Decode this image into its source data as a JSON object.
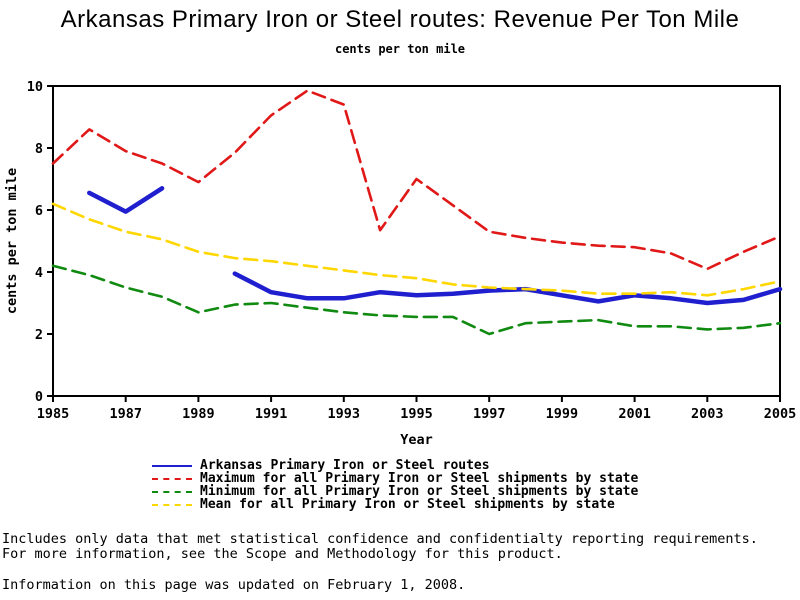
{
  "page": {
    "title": "Arkansas Primary Iron or Steel routes: Revenue Per Ton Mile",
    "subtitle": "cents per ton mile"
  },
  "chart_data": {
    "type": "line",
    "title": "Arkansas Primary Iron or Steel routes: Revenue Per Ton Mile",
    "subtitle": "cents per ton mile",
    "xlabel": "Year",
    "ylabel": "cents per ton mile",
    "xlim": [
      1985,
      2005
    ],
    "ylim": [
      0,
      10
    ],
    "xticks": [
      1985,
      1987,
      1989,
      1991,
      1993,
      1995,
      1997,
      1999,
      2001,
      2003,
      2005
    ],
    "yticks": [
      0,
      2,
      4,
      6,
      8,
      10
    ],
    "grid": false,
    "legend_position": "bottom",
    "x": [
      1985,
      1986,
      1987,
      1988,
      1989,
      1990,
      1991,
      1992,
      1993,
      1994,
      1995,
      1996,
      1997,
      1998,
      1999,
      2000,
      2001,
      2002,
      2003,
      2004,
      2005
    ],
    "series": [
      {
        "name": "Arkansas Primary Iron or Steel routes",
        "color": "#1f1fcf",
        "style": "solid",
        "stroke_width": 4.5,
        "values": [
          null,
          6.55,
          5.95,
          6.7,
          null,
          3.95,
          3.35,
          3.15,
          3.15,
          3.35,
          3.25,
          3.3,
          3.4,
          3.45,
          3.25,
          3.05,
          3.25,
          3.15,
          3.0,
          3.1,
          3.45
        ]
      },
      {
        "name": "Maximum for all Primary Iron or Steel shipments by state",
        "color": "#e01818",
        "style": "dashed",
        "stroke_width": 2.6,
        "values": [
          7.5,
          8.6,
          7.9,
          7.5,
          6.9,
          7.85,
          9.05,
          9.85,
          9.4,
          5.35,
          7.0,
          6.15,
          5.3,
          5.1,
          4.95,
          4.85,
          4.8,
          4.6,
          4.1,
          4.65,
          5.15
        ]
      },
      {
        "name": "Minimum for all Primary Iron or Steel shipments by state",
        "color": "#108a10",
        "style": "dashed",
        "stroke_width": 2.6,
        "values": [
          4.2,
          3.9,
          3.5,
          3.2,
          2.7,
          2.95,
          3.0,
          2.85,
          2.7,
          2.6,
          2.55,
          2.55,
          2.0,
          2.35,
          2.4,
          2.45,
          2.25,
          2.25,
          2.15,
          2.2,
          2.35
        ]
      },
      {
        "name": "Mean for all Primary Iron or Steel shipments by state",
        "color": "#ffd700",
        "style": "dashed",
        "stroke_width": 2.6,
        "values": [
          6.2,
          5.7,
          5.3,
          5.05,
          4.65,
          4.45,
          4.35,
          4.2,
          4.05,
          3.9,
          3.8,
          3.6,
          3.5,
          3.45,
          3.4,
          3.3,
          3.3,
          3.35,
          3.25,
          3.45,
          3.7
        ]
      }
    ]
  },
  "footnotes": {
    "line1": "Includes only data that met statistical confidence and confidentialty reporting requirements.",
    "line2": "For more information, see the Scope and Methodology for this product.",
    "line3": "Information on this page was updated on February 1, 2008."
  }
}
